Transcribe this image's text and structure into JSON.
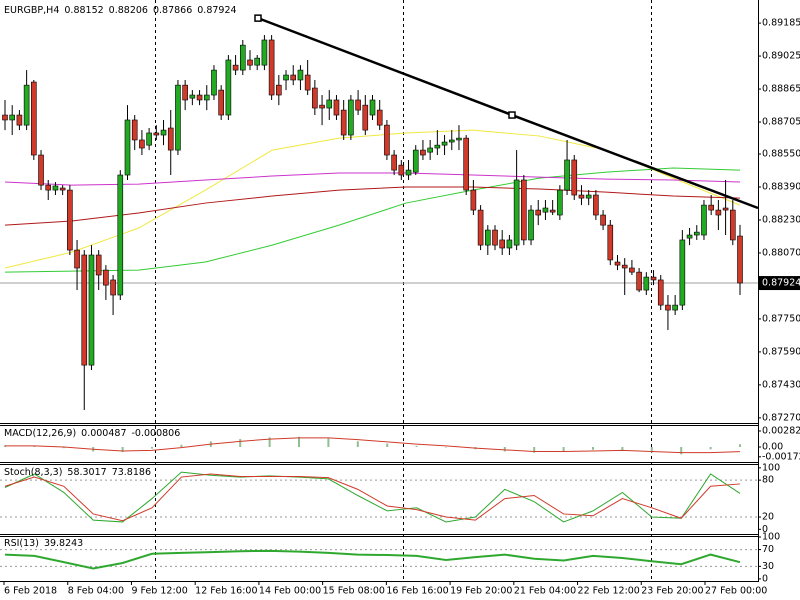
{
  "chart_data": [
    {
      "type": "candlestick",
      "title": "EURGBP,H4",
      "up_color": "#22aa22",
      "down_color": "#d03a2a",
      "candles": [
        [
          0.88739,
          0.88812,
          0.88666,
          0.88715
        ],
        [
          0.88715,
          0.88787,
          0.88642,
          0.88739
        ],
        [
          0.88739,
          0.88763,
          0.88666,
          0.8869
        ],
        [
          0.8869,
          0.88957,
          0.88666,
          0.88884
        ],
        [
          0.88899,
          0.88909,
          0.88521,
          0.88545
        ],
        [
          0.88545,
          0.88569,
          0.88375,
          0.88399
        ],
        [
          0.88399,
          0.88424,
          0.88327,
          0.88375
        ],
        [
          0.88375,
          0.88414,
          0.88351,
          0.88395
        ],
        [
          0.88385,
          0.88399,
          0.88351,
          0.88375
        ],
        [
          0.88375,
          0.88399,
          0.8806,
          0.88084
        ],
        [
          0.88084,
          0.88133,
          0.8789,
          0.87997
        ],
        [
          0.8806,
          0.88084,
          0.87308,
          0.87526
        ],
        [
          0.87526,
          0.88108,
          0.87502,
          0.8806
        ],
        [
          0.8806,
          0.88084,
          0.8789,
          0.87963
        ],
        [
          0.87987,
          0.88011,
          0.87842,
          0.87914
        ],
        [
          0.87939,
          0.87963,
          0.87769,
          0.87866
        ],
        [
          0.87866,
          0.88472,
          0.87842,
          0.88448
        ],
        [
          0.88448,
          0.88787,
          0.88424,
          0.88715
        ],
        [
          0.88715,
          0.88739,
          0.88569,
          0.88618
        ],
        [
          0.88618,
          0.88666,
          0.88545,
          0.88579
        ],
        [
          0.88593,
          0.88676,
          0.88569,
          0.88652
        ],
        [
          0.88652,
          0.8869,
          0.88618,
          0.88642
        ],
        [
          0.88642,
          0.88715,
          0.88593,
          0.88666
        ],
        [
          0.88676,
          0.88763,
          0.88448,
          0.88569
        ],
        [
          0.88569,
          0.88909,
          0.88545,
          0.88884
        ],
        [
          0.88884,
          0.88909,
          0.88763,
          0.88812
        ],
        [
          0.88821,
          0.8886,
          0.88787,
          0.88836
        ],
        [
          0.88836,
          0.8886,
          0.88787,
          0.88812
        ],
        [
          0.88812,
          0.88884,
          0.88763,
          0.88836
        ],
        [
          0.88836,
          0.88981,
          0.88812,
          0.88957
        ],
        [
          0.8886,
          0.88884,
          0.88715,
          0.88739
        ],
        [
          0.88739,
          0.8903,
          0.88715,
          0.89006
        ],
        [
          0.88981,
          0.8903,
          0.88933,
          0.88957
        ],
        [
          0.88957,
          0.89103,
          0.88933,
          0.89078
        ],
        [
          0.89006,
          0.89054,
          0.88957,
          0.88981
        ],
        [
          0.88981,
          0.8903,
          0.88957,
          0.89015
        ],
        [
          0.88981,
          0.89127,
          0.88957,
          0.89103
        ],
        [
          0.89103,
          0.89127,
          0.88812,
          0.88836
        ],
        [
          0.88884,
          0.88933,
          0.88787,
          0.88836
        ],
        [
          0.88909,
          0.88957,
          0.8886,
          0.88933
        ],
        [
          0.88933,
          0.88981,
          0.88884,
          0.88909
        ],
        [
          0.88909,
          0.88981,
          0.8886,
          0.88957
        ],
        [
          0.88933,
          0.89006,
          0.88836,
          0.8886
        ],
        [
          0.8887,
          0.88909,
          0.88739,
          0.88773
        ],
        [
          0.88787,
          0.88836,
          0.8869,
          0.88773
        ],
        [
          0.88773,
          0.8886,
          0.88715,
          0.88812
        ],
        [
          0.88812,
          0.88836,
          0.88715,
          0.88739
        ],
        [
          0.88763,
          0.88812,
          0.88618,
          0.88642
        ],
        [
          0.88642,
          0.88836,
          0.88618,
          0.88812
        ],
        [
          0.88812,
          0.8886,
          0.88739,
          0.88763
        ],
        [
          0.88787,
          0.88836,
          0.88642,
          0.88666
        ],
        [
          0.88739,
          0.88836,
          0.88715,
          0.88812
        ],
        [
          0.88763,
          0.88812,
          0.88666,
          0.8869
        ],
        [
          0.8869,
          0.88715,
          0.88521,
          0.88545
        ],
        [
          0.88545,
          0.88569,
          0.88448,
          0.88472
        ],
        [
          0.88496,
          0.88521,
          0.88424,
          0.88448
        ],
        [
          0.88448,
          0.88521,
          0.88424,
          0.88472
        ],
        [
          0.88462,
          0.88593,
          0.88448,
          0.88569
        ],
        [
          0.88569,
          0.88618,
          0.88521,
          0.88545
        ],
        [
          0.88559,
          0.88618,
          0.88521,
          0.88579
        ],
        [
          0.88579,
          0.88666,
          0.88545,
          0.88593
        ],
        [
          0.88593,
          0.88642,
          0.88545,
          0.88608
        ],
        [
          0.88608,
          0.88666,
          0.88569,
          0.88618
        ],
        [
          0.88618,
          0.8869,
          0.88569,
          0.88627
        ],
        [
          0.88627,
          0.88642,
          0.88351,
          0.88375
        ],
        [
          0.88375,
          0.88424,
          0.88254,
          0.88278
        ],
        [
          0.88278,
          0.88302,
          0.88084,
          0.88108
        ],
        [
          0.88108,
          0.88205,
          0.8806,
          0.88181
        ],
        [
          0.88181,
          0.88205,
          0.88084,
          0.88108
        ],
        [
          0.88133,
          0.88181,
          0.8806,
          0.88094
        ],
        [
          0.88094,
          0.88157,
          0.8806,
          0.88133
        ],
        [
          0.88108,
          0.88569,
          0.88084,
          0.88424
        ],
        [
          0.88424,
          0.88448,
          0.88108,
          0.88133
        ],
        [
          0.88133,
          0.88302,
          0.88108,
          0.88278
        ],
        [
          0.88278,
          0.88327,
          0.88205,
          0.88254
        ],
        [
          0.88268,
          0.88327,
          0.8823,
          0.88288
        ],
        [
          0.88278,
          0.88327,
          0.88254,
          0.88268
        ],
        [
          0.88254,
          0.88399,
          0.8823,
          0.88375
        ],
        [
          0.88375,
          0.88618,
          0.88351,
          0.88521
        ],
        [
          0.88521,
          0.88545,
          0.88327,
          0.88351
        ],
        [
          0.88351,
          0.88399,
          0.88302,
          0.88336
        ],
        [
          0.88336,
          0.88375,
          0.88302,
          0.88351
        ],
        [
          0.88351,
          0.88375,
          0.8823,
          0.88254
        ],
        [
          0.88254,
          0.88278,
          0.88181,
          0.88205
        ],
        [
          0.88205,
          0.8823,
          0.88011,
          0.88036
        ],
        [
          0.88026,
          0.8806,
          0.87987,
          0.88011
        ],
        [
          0.88011,
          0.88045,
          0.87866,
          0.87997
        ],
        [
          0.87997,
          0.88036,
          0.87963,
          0.87977
        ],
        [
          0.87977,
          0.87997,
          0.8788,
          0.8789
        ],
        [
          0.8789,
          0.87977,
          0.87866,
          0.87953
        ],
        [
          0.87953,
          0.87987,
          0.87914,
          0.87939
        ],
        [
          0.87939,
          0.87963,
          0.87793,
          0.87817
        ],
        [
          0.87817,
          0.87866,
          0.87696,
          0.87793
        ],
        [
          0.87793,
          0.87866,
          0.87769,
          0.87817
        ],
        [
          0.87817,
          0.88181,
          0.87793,
          0.88133
        ],
        [
          0.88142,
          0.88191,
          0.88108,
          0.88157
        ],
        [
          0.88157,
          0.88205,
          0.88133,
          0.88171
        ],
        [
          0.88157,
          0.88327,
          0.88133,
          0.88302
        ],
        [
          0.88302,
          0.88351,
          0.88254,
          0.88278
        ],
        [
          0.88278,
          0.88327,
          0.88181,
          0.88254
        ],
        [
          0.88288,
          0.88424,
          0.88157,
          0.88278
        ],
        [
          0.88278,
          0.88327,
          0.88108,
          0.88133
        ],
        [
          0.88152,
          0.88206,
          0.87866,
          0.87924
        ]
      ],
      "moving_averages": [
        {
          "color": "#f0e840",
          "values": [
            0.87997,
            0.88074,
            0.88191,
            0.88375,
            0.88569,
            0.88627,
            0.88652,
            0.88666,
            0.88637,
            0.88569,
            0.88433,
            0.88302
          ]
        },
        {
          "color": "#33cc33",
          "values": [
            0.87977,
            0.87982,
            0.87987,
            0.88026,
            0.88108,
            0.88205,
            0.88312,
            0.88375,
            0.88433,
            0.88462,
            0.88482,
            0.88472
          ]
        },
        {
          "color": "#cc33cc",
          "values": [
            0.88414,
            0.88399,
            0.88404,
            0.88424,
            0.88443,
            0.88458,
            0.88458,
            0.88448,
            0.88438,
            0.88428,
            0.88424,
            0.88414
          ]
        },
        {
          "color": "#b01818",
          "values": [
            0.88205,
            0.88225,
            0.88264,
            0.88312,
            0.88346,
            0.88375,
            0.8839,
            0.8839,
            0.8838,
            0.88365,
            0.88346,
            0.88336
          ]
        }
      ],
      "trendline": {
        "color": "#000000",
        "values": [
          0.89209,
          0.88739,
          0.88288
        ]
      },
      "ylim": [
        0.8725,
        0.89297
      ],
      "yticks": [
        0.89185,
        0.89025,
        0.88865,
        0.88705,
        {
          "value": 0.8855,
          "label": "0.88550"
        },
        {
          "value": 0.8839,
          "label": "0.88390"
        },
        {
          "value": 0.8823,
          "label": "0.88230"
        },
        {
          "value": 0.8807,
          "label": "0.88070"
        },
        {
          "value": 0.8775,
          "label": "0.87750"
        },
        {
          "value": 0.8759,
          "label": "0.87590"
        },
        {
          "value": 0.8743,
          "label": "0.87430"
        },
        {
          "value": 0.8727,
          "label": "0.87270"
        }
      ],
      "x_labels": [
        "6 Feb 2018",
        "8 Feb 04:00",
        "9 Feb 12:00",
        "12 Feb 16:00",
        "14 Feb 00:00",
        "15 Feb 08:00",
        "16 Feb 16:00",
        "19 Feb 20:00",
        "21 Feb 04:00",
        "22 Feb 12:00",
        "23 Feb 20:00",
        "27 Feb 00:00"
      ]
    },
    {
      "type": "macd",
      "title": "MACD(12,26,9)",
      "color": "#8fbf8f",
      "signal_color": "#d03a2a",
      "values": [
        0.0003,
        0.0002,
        -0.0002,
        -0.0008,
        -0.0009,
        -0.0003,
        0.0004,
        0.001,
        0.0014,
        0.0017,
        0.0018,
        0.0015,
        0.001,
        0.0006,
        0.0002,
        0,
        -0.0004,
        -0.0008,
        -0.001,
        -0.0008,
        -0.0005,
        -0.0006,
        -0.001,
        -0.0013,
        -0.0004,
        0.000487
      ],
      "signal": [
        0.0002,
        0.0002,
        0,
        -0.0004,
        -0.0007,
        -0.0006,
        -0.0001,
        0.0005,
        0.001,
        0.0014,
        0.0016,
        0.0016,
        0.0013,
        0.0009,
        0.0005,
        0.0002,
        -0.0002,
        -0.0005,
        -0.0008,
        -0.0008,
        -0.0007,
        -0.0006,
        -0.0008,
        -0.001,
        -0.001,
        -0.000806
      ],
      "ylim": [
        -0.00247,
        0.00353
      ],
      "yticks": [
        0.002827,
        {
          "value": 0,
          "label": "0.00"
        },
        -0.001729
      ]
    },
    {
      "type": "stochastic",
      "title": "Stoch(8,3,3)",
      "series": [
        {
          "color": "#2fa82f",
          "values": [
            68,
            90,
            60,
            15,
            12,
            50,
            93,
            88,
            85,
            87,
            85,
            82,
            55,
            30,
            35,
            12,
            20,
            65,
            45,
            12,
            30,
            60,
            20,
            18,
            90,
            58.3017
          ]
        },
        {
          "color": "#d03a2a",
          "values": [
            70,
            85,
            70,
            25,
            14,
            35,
            85,
            90,
            86,
            86,
            86,
            84,
            65,
            38,
            32,
            20,
            15,
            50,
            55,
            25,
            22,
            50,
            35,
            18,
            70,
            73.8186
          ]
        }
      ],
      "levels": [
        80,
        20
      ],
      "ylim": [
        -6,
        103
      ],
      "yticks": [
        100,
        80,
        20,
        0
      ]
    },
    {
      "type": "rsi",
      "title": "RSI(13)",
      "color": "#2fa82f",
      "values": [
        58,
        55,
        40,
        25,
        38,
        60,
        62,
        64,
        66,
        67,
        65,
        62,
        58,
        57,
        55,
        45,
        52,
        58,
        48,
        44,
        55,
        50,
        42,
        35,
        58,
        39.8243
      ],
      "levels": [
        70,
        30
      ],
      "ylim": [
        -5,
        100
      ],
      "yticks": [
        100,
        70,
        30,
        0
      ]
    }
  ]
}
